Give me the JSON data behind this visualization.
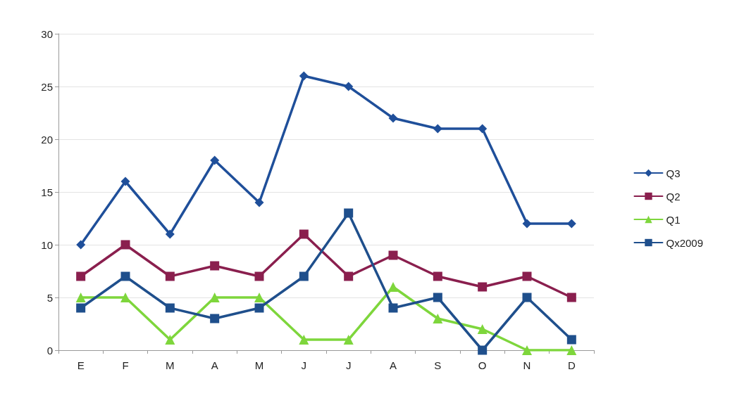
{
  "chart_data": {
    "type": "line",
    "categories": [
      "E",
      "F",
      "M",
      "A",
      "M",
      "J",
      "J",
      "A",
      "S",
      "O",
      "N",
      "D"
    ],
    "series": [
      {
        "name": "Q3",
        "color": "#1f4f9a",
        "marker": "diamond",
        "values": [
          10,
          16,
          11,
          18,
          14,
          26,
          25,
          22,
          21,
          21,
          12,
          12
        ]
      },
      {
        "name": "Q2",
        "color": "#8a1f4e",
        "marker": "square",
        "values": [
          7,
          10,
          7,
          8,
          7,
          11,
          7,
          9,
          7,
          6,
          7,
          5
        ]
      },
      {
        "name": "Q1",
        "color": "#7ed63c",
        "marker": "triangle",
        "values": [
          5,
          5,
          1,
          5,
          5,
          1,
          1,
          6,
          3,
          2,
          0,
          0
        ]
      },
      {
        "name": "Qx2009",
        "color": "#1f4f8c",
        "marker": "square",
        "values": [
          4,
          7,
          4,
          3,
          4,
          7,
          13,
          4,
          5,
          0,
          5,
          1
        ]
      }
    ],
    "ylim": [
      0,
      30
    ],
    "yticks": [
      0,
      5,
      10,
      15,
      20,
      25,
      30
    ],
    "grid": "y",
    "legend": "right",
    "line_style": "solid"
  }
}
